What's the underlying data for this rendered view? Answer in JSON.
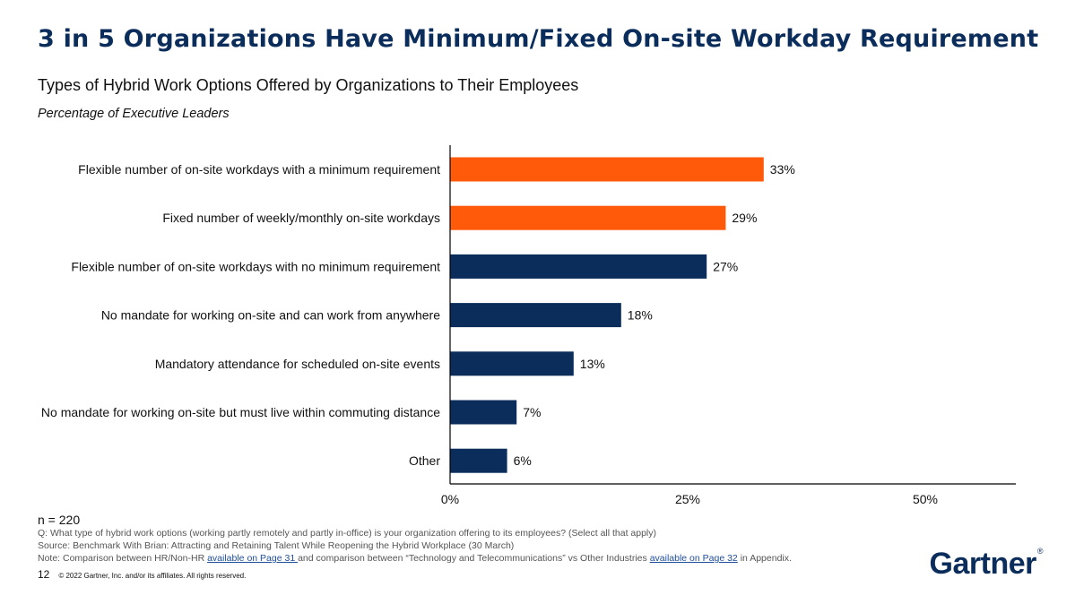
{
  "header": {
    "title": "3 in 5 Organizations Have Minimum/Fixed On-site Workday Requirement",
    "subtitle": "Types of Hybrid Work Options Offered by Organizations to Their Employees",
    "unit": "Percentage of Executive Leaders"
  },
  "chart_data": {
    "type": "bar",
    "orientation": "horizontal",
    "categories": [
      "Flexible number of on-site workdays with a minimum requirement",
      "Fixed number of weekly/monthly on-site workdays",
      "Flexible number of on-site workdays with no minimum requirement",
      "No mandate for working on-site and can work from anywhere",
      "Mandatory attendance for scheduled on-site events",
      "No mandate for working on-site but must live within commuting distance",
      "Other"
    ],
    "values": [
      33,
      29,
      27,
      18,
      13,
      7,
      6
    ],
    "value_labels": [
      "33%",
      "29%",
      "27%",
      "18%",
      "13%",
      "7%",
      "6%"
    ],
    "bar_colors": [
      "#ff5a0a",
      "#ff5a0a",
      "#0b2d5b",
      "#0b2d5b",
      "#0b2d5b",
      "#0b2d5b",
      "#0b2d5b"
    ],
    "xlim": [
      0,
      60
    ],
    "x_ticks": [
      0,
      25,
      50
    ],
    "x_tick_labels": [
      "0%",
      "25%",
      "50%"
    ],
    "grid": false,
    "legend": "none"
  },
  "notes": {
    "n": "n = 220",
    "question": "Q: What type of hybrid work options (working partly remotely and partly in-office) is your organization offering to its employees? (Select all that apply)",
    "source": "Source: Benchmark With Brian: Attracting and Retaining Talent While Reopening the Hybrid Workplace (30 March)",
    "note_prefix": "Note: Comparison between HR/Non-HR ",
    "link1": "available on Page 31 ",
    "note_middle": "and comparison between “Technology and Telecommunications” vs Other Industries ",
    "link2": "available on Page 32",
    "note_suffix": " in Appendix."
  },
  "footer": {
    "page_number": "12",
    "copyright": "© 2022 Gartner, Inc. and/or its affiliates. All rights reserved.",
    "logo": "Gartner",
    "logo_mark": "®"
  }
}
